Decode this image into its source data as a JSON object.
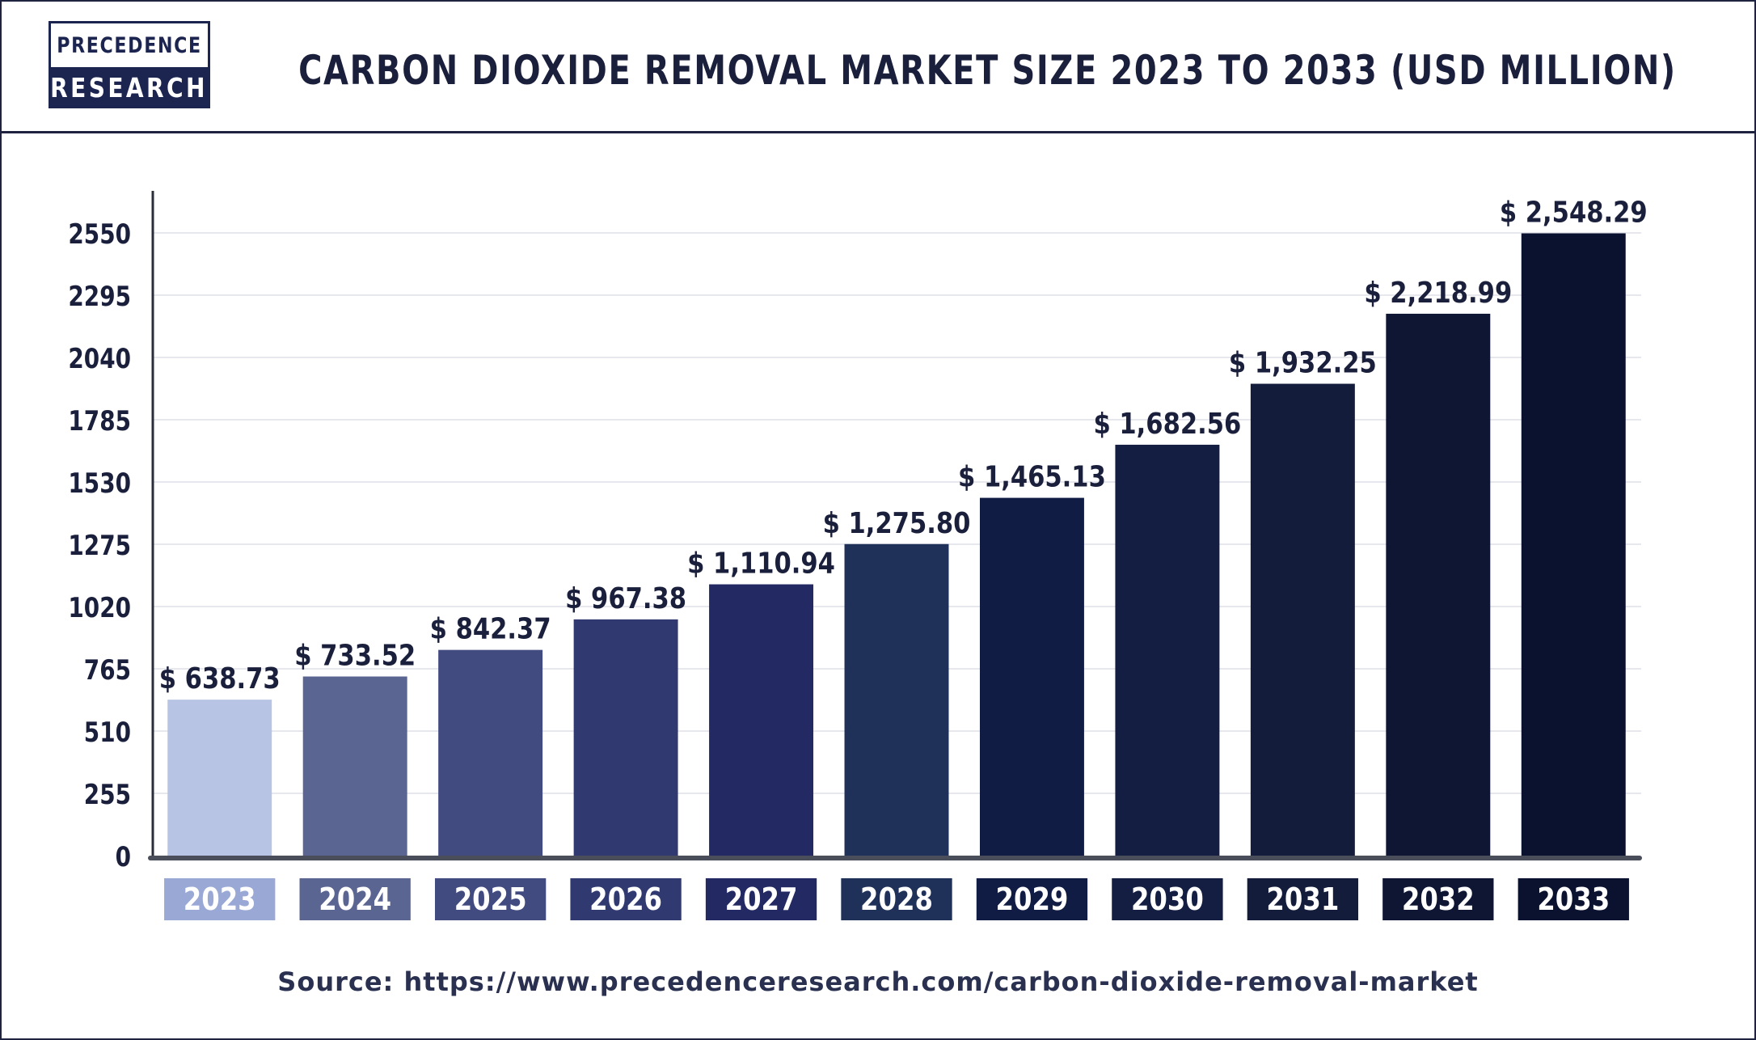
{
  "brand": {
    "line1": "PRECEDENCE",
    "line2": "RESEARCH"
  },
  "source_text": "Source: https://www.precedenceresearch.com/carbon-dioxide-removal-market",
  "chart_data": {
    "type": "bar",
    "title": "CARBON DIOXIDE REMOVAL MARKET SIZE 2023 TO 2033 (USD MILLION)",
    "xlabel": "",
    "ylabel": "",
    "categories": [
      "2023",
      "2024",
      "2025",
      "2026",
      "2027",
      "2028",
      "2029",
      "2030",
      "2031",
      "2032",
      "2033"
    ],
    "values": [
      638.73,
      733.52,
      842.37,
      967.38,
      1110.94,
      1275.8,
      1465.13,
      1682.56,
      1932.25,
      2218.99,
      2548.29
    ],
    "value_labels": [
      "$ 638.73",
      "$ 733.52",
      "$ 842.37",
      "$ 967.38",
      "$ 1,110.94",
      "$ 1,275.80",
      "$ 1,465.13",
      "$ 1,682.56",
      "$ 1,932.25",
      "$ 2,218.99",
      "$ 2,548.29"
    ],
    "ylim": [
      0,
      2550
    ],
    "yticks": [
      0,
      255,
      510,
      765,
      1020,
      1275,
      1530,
      1785,
      2040,
      2295,
      2550
    ],
    "grid": true,
    "legend": "none",
    "bar_colors": [
      "#b8c4e3",
      "#5a6591",
      "#424b80",
      "#303a70",
      "#232a63",
      "#1f3158",
      "#101c44",
      "#131e42",
      "#131d3b",
      "#0f1634",
      "#0b1230"
    ],
    "label_colors": [
      "#9aa8d6",
      "#5a6591",
      "#424b80",
      "#303a70",
      "#232a63",
      "#1f3158",
      "#101c44",
      "#131e42",
      "#131d3b",
      "#0f1634",
      "#0b1230"
    ]
  }
}
